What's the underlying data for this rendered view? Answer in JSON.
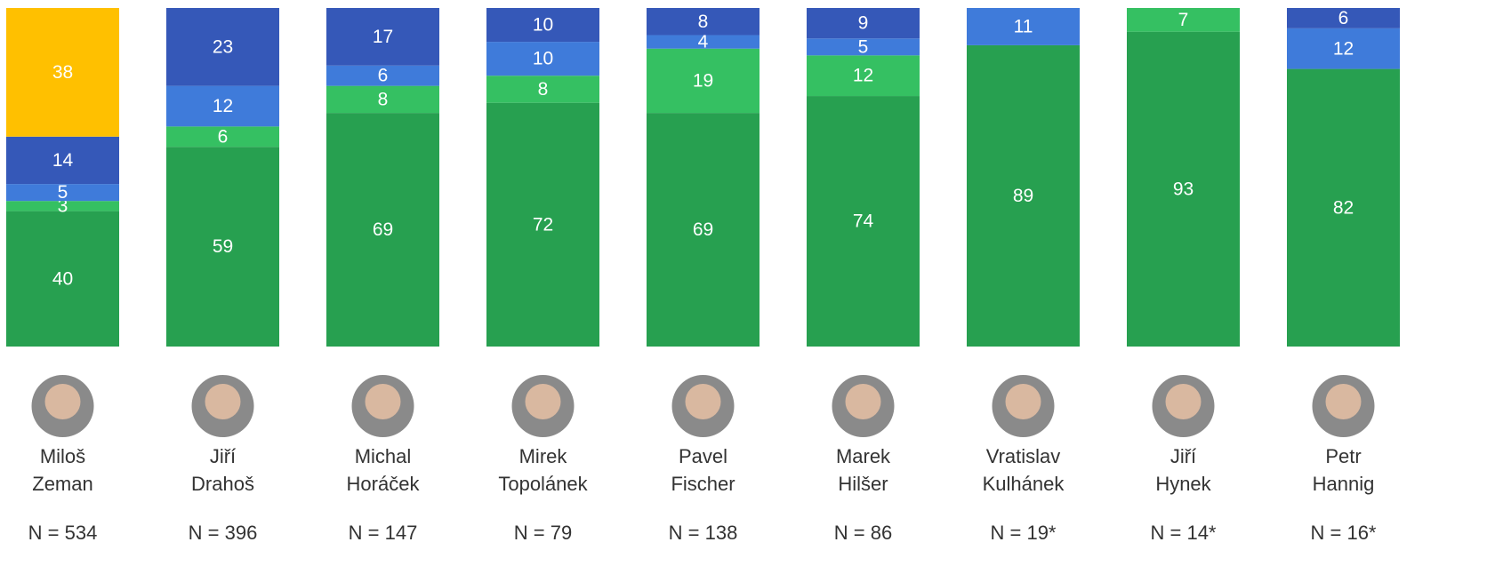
{
  "chart_data": {
    "type": "stacked_bar",
    "categories": [
      [
        "Miloš",
        "Zeman"
      ],
      [
        "Jiří",
        "Drahoš"
      ],
      [
        "Michal",
        "Horáček"
      ],
      [
        "Mirek",
        "Topolánek"
      ],
      [
        "Pavel",
        "Fischer"
      ],
      [
        "Marek",
        "Hilšer"
      ],
      [
        "Vratislav",
        "Kulhánek"
      ],
      [
        "Jiří",
        "Hynek"
      ],
      [
        "Petr",
        "Hannig"
      ]
    ],
    "n_labels": [
      "N = 534",
      "N = 396",
      "N = 147",
      "N = 79",
      "N = 138",
      "N = 86",
      "N = 19*",
      "N = 14*",
      "N = 16*"
    ],
    "ylim": [
      0,
      100
    ],
    "series": [
      {
        "color": "#27a050",
        "values": [
          40,
          59,
          69,
          72,
          69,
          74,
          89,
          93,
          82
        ]
      },
      {
        "color": "#35c062",
        "values": [
          3,
          6,
          8,
          8,
          19,
          12,
          null,
          7,
          null
        ]
      },
      {
        "color": "#3f7bda",
        "values": [
          5,
          12,
          6,
          10,
          4,
          5,
          11,
          null,
          12
        ]
      },
      {
        "color": "#3558b8",
        "values": [
          14,
          23,
          17,
          10,
          8,
          9,
          null,
          null,
          6
        ]
      },
      {
        "color": "#ffc000",
        "values": [
          38,
          null,
          null,
          null,
          null,
          null,
          null,
          null,
          null
        ]
      }
    ]
  }
}
